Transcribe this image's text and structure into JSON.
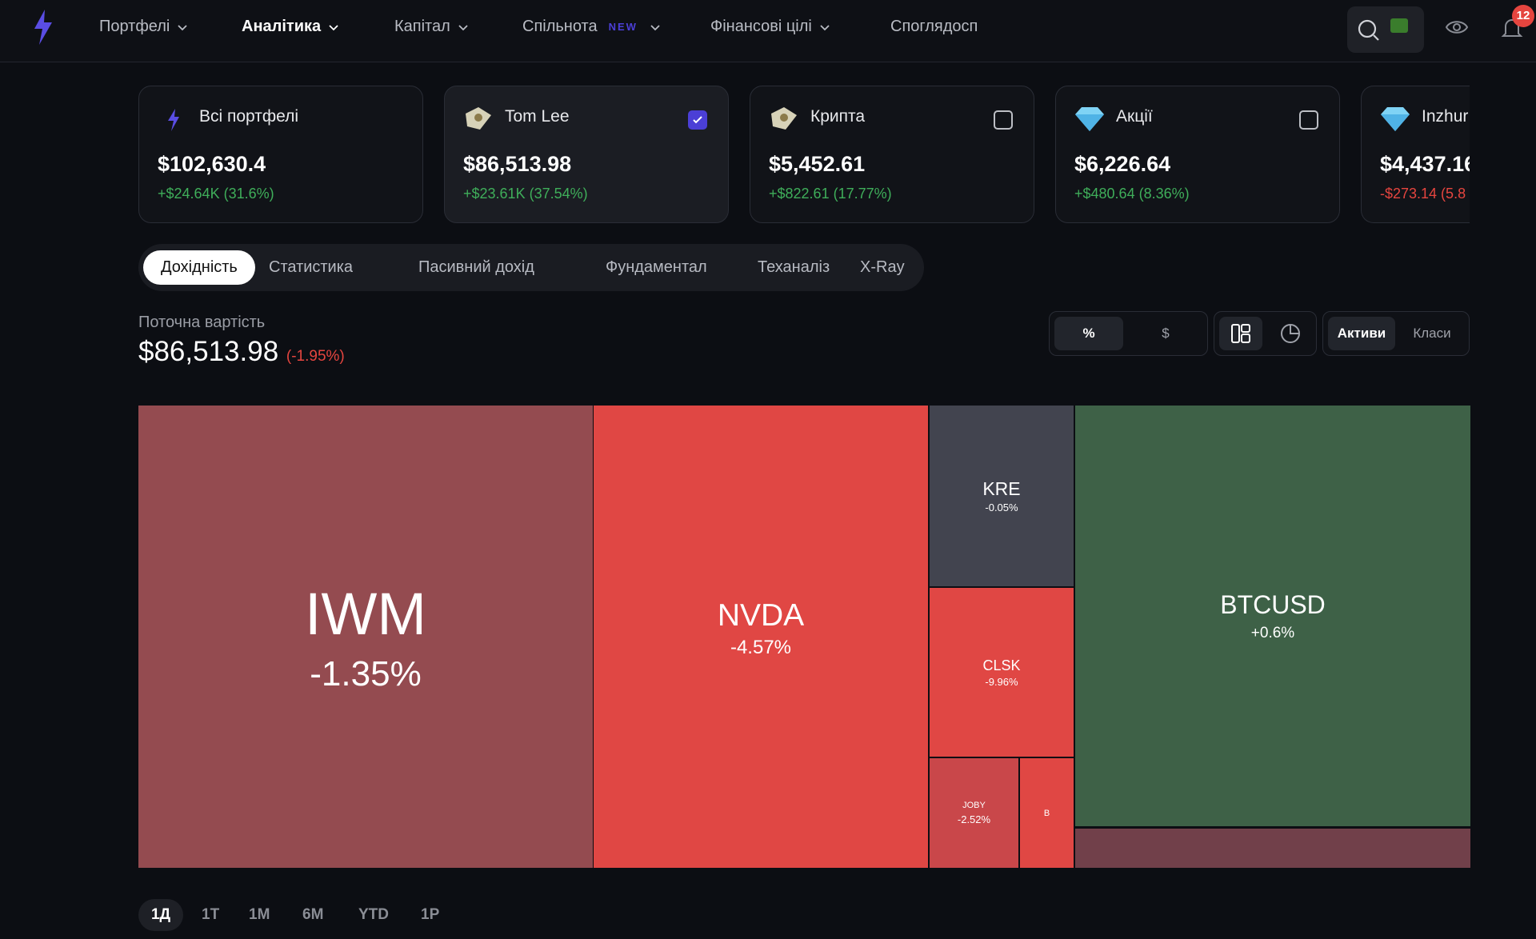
{
  "nav": {
    "items": [
      "Портфелі",
      "Аналітика",
      "Капітал",
      "Спільнота",
      "Фінансові цілі",
      "Споглядосп"
    ],
    "new_badge": "NEW",
    "notifications": "12"
  },
  "portfolios": [
    {
      "name": "Всі портфелі",
      "value": "$102,630.4",
      "change": "+$24.64K (31.6%)"
    },
    {
      "name": "Tom Lee",
      "value": "$86,513.98",
      "change": "+$23.61K (37.54%)"
    },
    {
      "name": "Крипта",
      "value": "$5,452.61",
      "change": "+$822.61 (17.77%)"
    },
    {
      "name": "Акції",
      "value": "$6,226.64",
      "change": "+$480.64 (8.36%)"
    },
    {
      "name": "Inzhur",
      "value": "$4,437.16",
      "change": "-$273.14 (5.8"
    }
  ],
  "tabs": [
    "Дохідність",
    "Статистика",
    "Пасивний дохід",
    "Фундаментал",
    "Теханаліз",
    "X-Ray"
  ],
  "current": {
    "label": "Поточна вартість",
    "value": "$86,513.98",
    "change": "(-1.95%)"
  },
  "controls": {
    "unit": [
      "%",
      "$"
    ],
    "group": [
      "Активи",
      "Класи"
    ]
  },
  "treemap": [
    {
      "ticker": "IWM",
      "change": "-1.35%"
    },
    {
      "ticker": "NVDA",
      "change": "-4.57%"
    },
    {
      "ticker": "KRE",
      "change": "-0.05%"
    },
    {
      "ticker": "CLSK",
      "change": "-9.96%"
    },
    {
      "ticker": "JOBY",
      "change": "-2.52%"
    },
    {
      "ticker": "B"
    },
    {
      "ticker": "BTCUSD",
      "change": "+0.6%"
    }
  ],
  "periods": [
    "1Д",
    "1Т",
    "1М",
    "6М",
    "YTD",
    "1Р"
  ]
}
